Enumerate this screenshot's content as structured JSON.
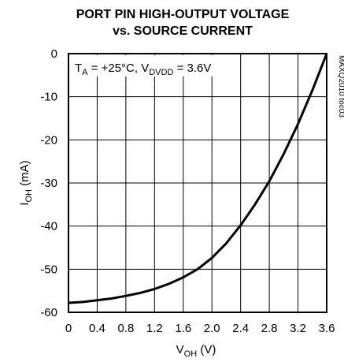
{
  "chart_data": {
    "type": "line",
    "title_line1": "PORT PIN HIGH-OUTPUT VOLTAGE",
    "title_line2": "vs. SOURCE CURRENT",
    "xlabel": {
      "main": "V",
      "sub": "OH",
      "suffix": " (V)"
    },
    "ylabel": {
      "main": "I",
      "sub": "OH",
      "suffix": " (mA)"
    },
    "annotation": {
      "t_main": "T",
      "t_sub": "A",
      "t_rest": " = +25°C, V",
      "v_sub": "DVDD",
      "v_rest": " = 3.6V"
    },
    "part_number": "MAXQ2010 toc03",
    "xlim": [
      0,
      3.6
    ],
    "ylim": [
      -60,
      0
    ],
    "x_ticks": [
      "0",
      "0.4",
      "0.8",
      "1.2",
      "1.6",
      "2.0",
      "2.4",
      "2.8",
      "3.2",
      "3.6"
    ],
    "y_ticks": [
      "0",
      "-10",
      "-20",
      "-30",
      "-40",
      "-50",
      "-60"
    ],
    "grid": true,
    "series": [
      {
        "values": [
          [
            0,
            -57.8
          ],
          [
            0.2,
            -57.6
          ],
          [
            0.4,
            -57.2
          ],
          [
            0.6,
            -56.8
          ],
          [
            0.8,
            -56.2
          ],
          [
            1.0,
            -55.5
          ],
          [
            1.2,
            -54.6
          ],
          [
            1.4,
            -53.4
          ],
          [
            1.6,
            -51.9
          ],
          [
            1.8,
            -50.0
          ],
          [
            2.0,
            -47.4
          ],
          [
            2.2,
            -44.0
          ],
          [
            2.4,
            -39.8
          ],
          [
            2.6,
            -35.0
          ],
          [
            2.8,
            -29.6
          ],
          [
            3.0,
            -23.3
          ],
          [
            3.2,
            -16.3
          ],
          [
            3.4,
            -8.5
          ],
          [
            3.6,
            0.0
          ]
        ]
      }
    ]
  }
}
